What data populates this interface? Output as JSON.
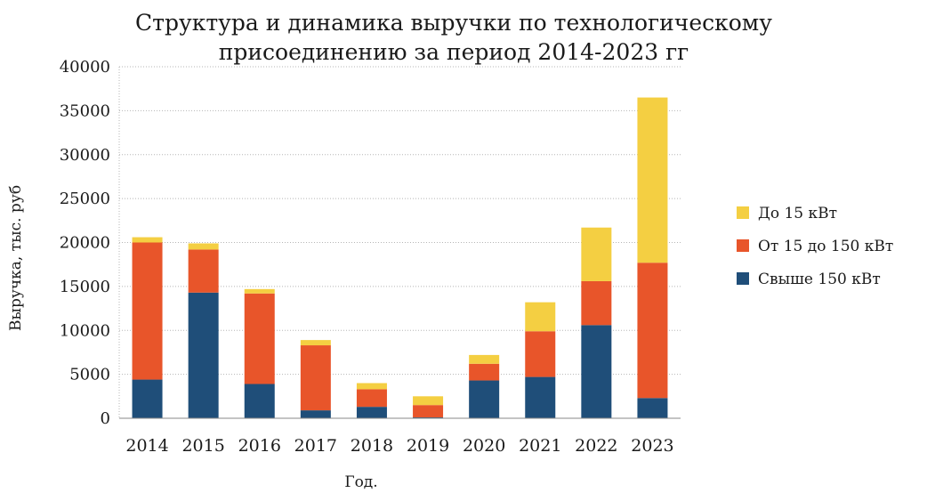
{
  "chart_data": {
    "type": "bar",
    "stacked": true,
    "title": "Структура и динамика выручки по технологическому присоединению за период 2014-2023 гг",
    "title_lines": [
      "Структура и динамика выручки по технологическому",
      "присоединению за период 2014-2023 гг"
    ],
    "xlabel": "Год.",
    "ylabel": "Выручка, тыс. руб",
    "ylim": [
      0,
      40000
    ],
    "y_ticks": [
      0,
      5000,
      10000,
      15000,
      20000,
      25000,
      30000,
      35000,
      40000
    ],
    "grid": true,
    "legend_position": "right",
    "categories": [
      "2014",
      "2015",
      "2016",
      "2017",
      "2018",
      "2019",
      "2020",
      "2021",
      "2022",
      "2023"
    ],
    "series": [
      {
        "name": "Свыше 150 кВт",
        "color": "#1f4e79",
        "values": [
          4400,
          14300,
          3900,
          900,
          1300,
          100,
          4300,
          4700,
          10600,
          2300
        ]
      },
      {
        "name": "От 15 до 150 кВт",
        "color": "#e8552a",
        "values": [
          15600,
          4900,
          10300,
          7400,
          2000,
          1400,
          1900,
          5200,
          5000,
          15400
        ]
      },
      {
        "name": "До 15 кВт",
        "color": "#f4cf42",
        "values": [
          600,
          700,
          500,
          600,
          700,
          1000,
          1000,
          3300,
          6100,
          18800
        ]
      }
    ],
    "legend_order": [
      "До 15 кВт",
      "От 15 до 150 кВт",
      "Свыше 150 кВт"
    ]
  }
}
